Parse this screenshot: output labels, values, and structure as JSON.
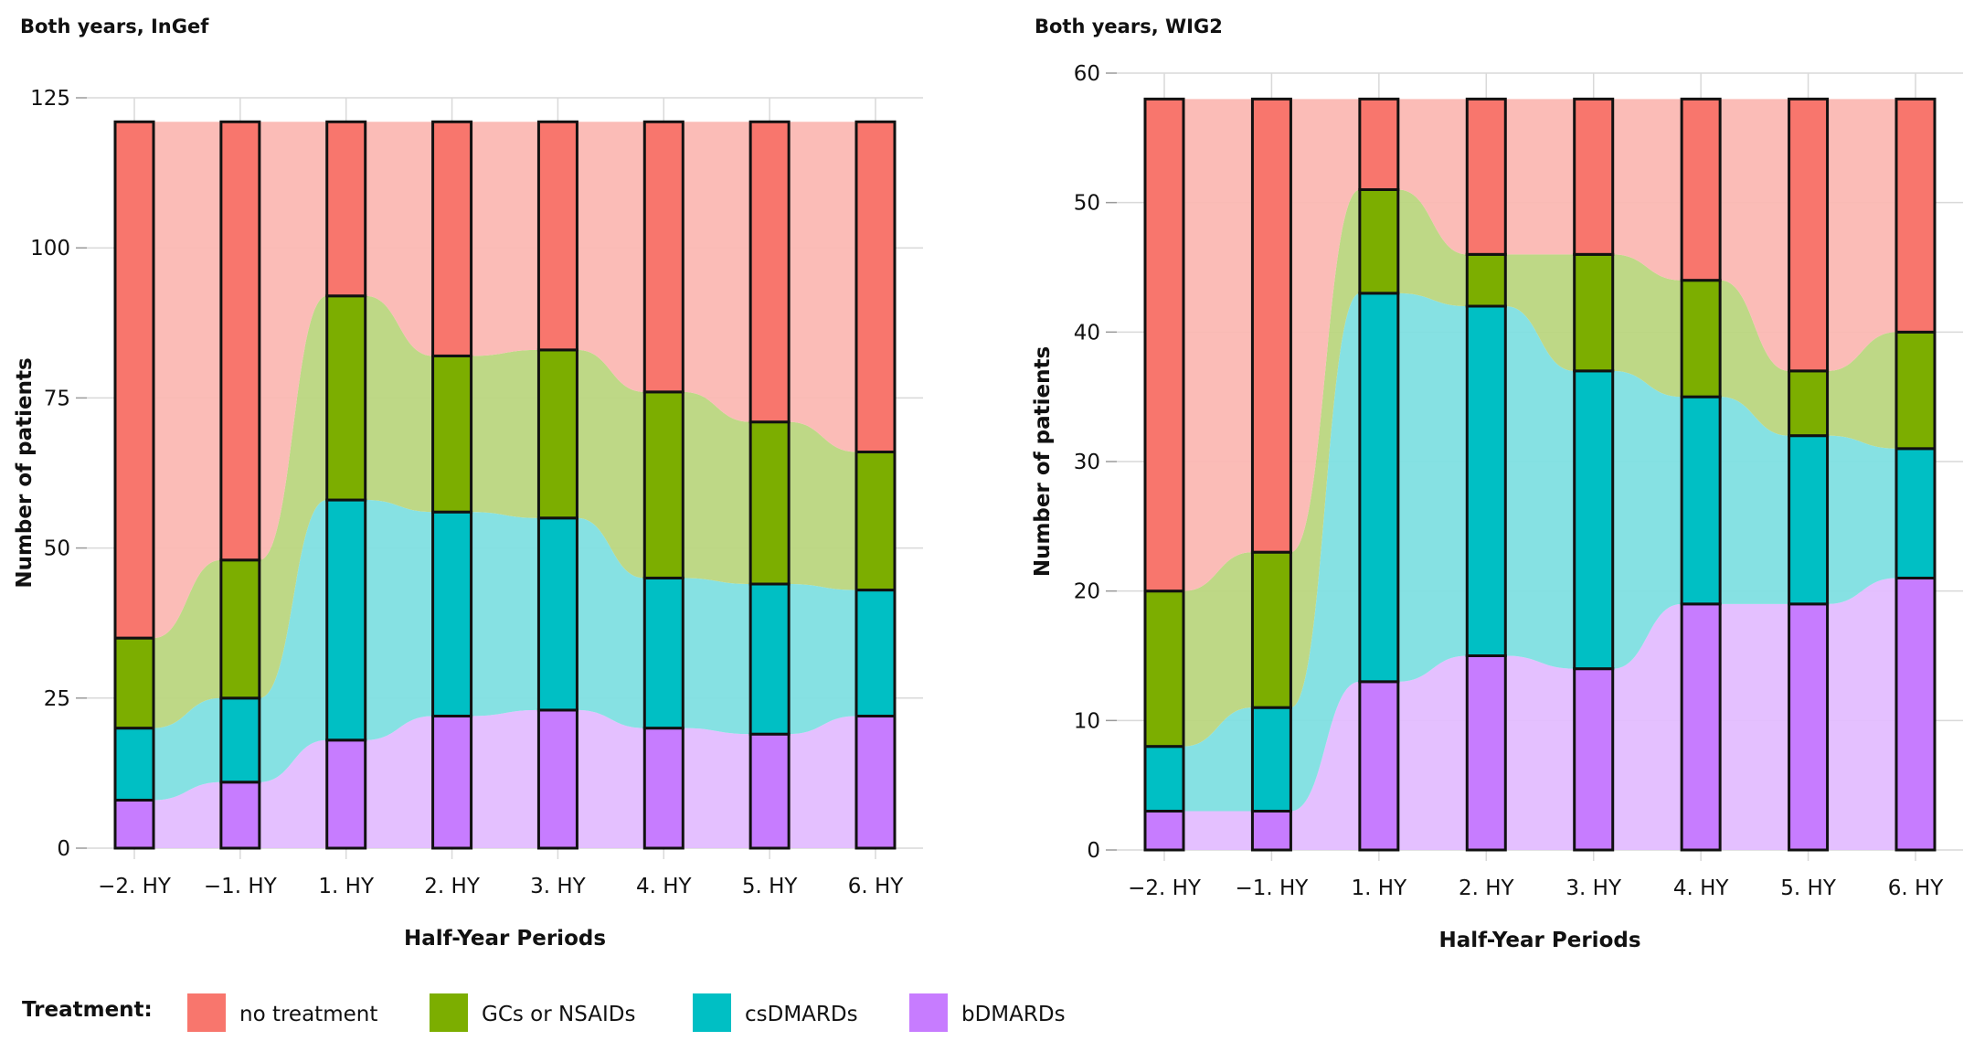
{
  "legend": {
    "title": "Treatment:",
    "items": [
      {
        "key": "no_treatment",
        "label": "no treatment",
        "color": "#F8766D",
        "flow_color": "#FBB8B3"
      },
      {
        "key": "gcs_nsaids",
        "label": "GCs or NSAIDs",
        "color": "#7CAE00",
        "flow_color": "#BBD67F"
      },
      {
        "key": "csdmards",
        "label": "csDMARDs",
        "color": "#00BFC4",
        "flow_color": "#7FDFE1"
      },
      {
        "key": "bdmards",
        "label": "bDMARDs",
        "color": "#C77CFF",
        "flow_color": "#E3BDFF"
      }
    ]
  },
  "chart_data": [
    {
      "type": "alluvial",
      "title": "Both years, InGef",
      "xlabel": "Half-Year Periods",
      "ylabel": "Number of patients",
      "ylim": [
        0,
        125
      ],
      "yticks": [
        0,
        25,
        50,
        75,
        100,
        125
      ],
      "categories": [
        "−2. HY",
        "−1. HY",
        "1. HY",
        "2. HY",
        "3. HY",
        "4. HY",
        "5. HY",
        "6. HY"
      ],
      "series": [
        {
          "name": "bDMARDs",
          "key": "bdmards",
          "values": [
            8,
            11,
            18,
            22,
            23,
            20,
            19,
            22
          ]
        },
        {
          "name": "csDMARDs",
          "key": "csdmards",
          "values": [
            12,
            14,
            40,
            34,
            32,
            25,
            25,
            21
          ]
        },
        {
          "name": "GCs or NSAIDs",
          "key": "gcs_nsaids",
          "values": [
            15,
            23,
            34,
            26,
            28,
            31,
            27,
            23
          ]
        },
        {
          "name": "no treatment",
          "key": "no_treatment",
          "values": [
            86,
            73,
            29,
            39,
            38,
            45,
            50,
            55
          ]
        }
      ]
    },
    {
      "type": "alluvial",
      "title": "Both years, WIG2",
      "xlabel": "Half-Year Periods",
      "ylabel": "Number of patients",
      "ylim": [
        0,
        60
      ],
      "yticks": [
        0,
        10,
        20,
        30,
        40,
        50,
        60
      ],
      "categories": [
        "−2. HY",
        "−1. HY",
        "1. HY",
        "2. HY",
        "3. HY",
        "4. HY",
        "5. HY",
        "6. HY"
      ],
      "series": [
        {
          "name": "bDMARDs",
          "key": "bdmards",
          "values": [
            3,
            3,
            13,
            15,
            14,
            19,
            19,
            21
          ]
        },
        {
          "name": "csDMARDs",
          "key": "csdmards",
          "values": [
            5,
            8,
            30,
            27,
            23,
            16,
            13,
            10
          ]
        },
        {
          "name": "GCs or NSAIDs",
          "key": "gcs_nsaids",
          "values": [
            12,
            12,
            8,
            4,
            9,
            9,
            5,
            9
          ]
        },
        {
          "name": "no treatment",
          "key": "no_treatment",
          "values": [
            38,
            35,
            7,
            12,
            12,
            14,
            21,
            18
          ]
        }
      ]
    }
  ]
}
